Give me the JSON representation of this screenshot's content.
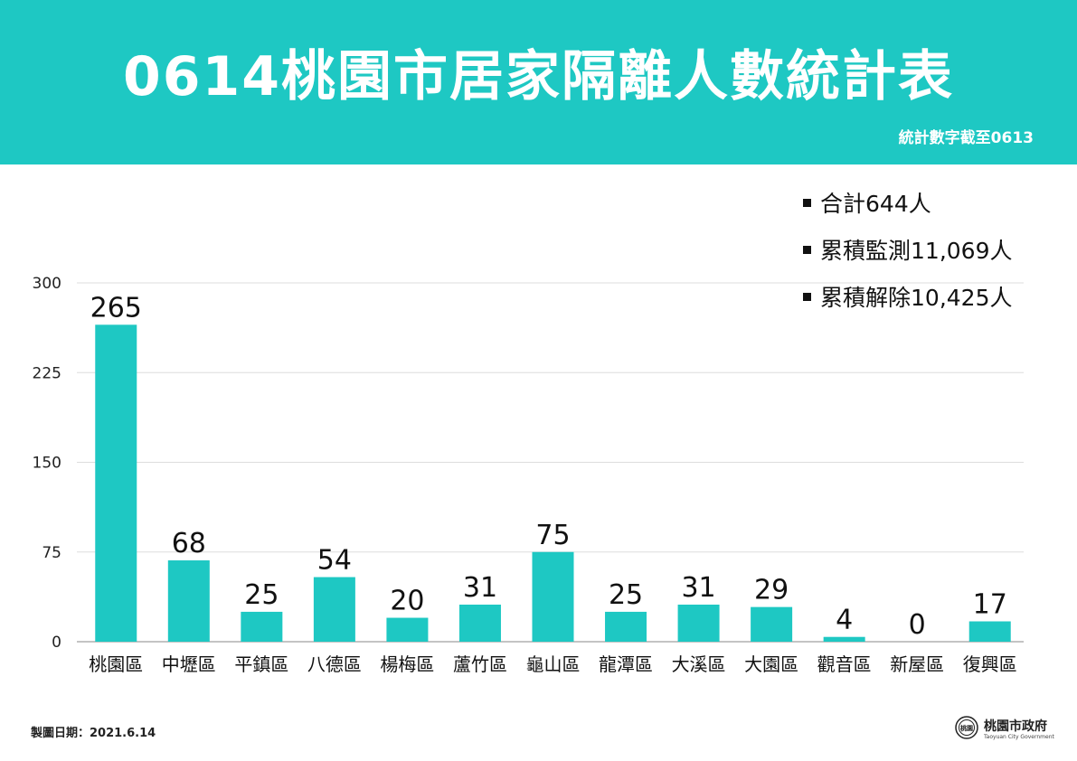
{
  "header": {
    "title": "0614桃園市居家隔離人數統計表",
    "subtitle": "統計數字截至0613"
  },
  "summary": [
    {
      "label": "合計",
      "value": "644",
      "unit": "人"
    },
    {
      "label": "累積監測",
      "value": "11,069",
      "unit": "人"
    },
    {
      "label": "累積解除",
      "value": "10,425",
      "unit": "人"
    }
  ],
  "chart_data": {
    "type": "bar",
    "title": "",
    "xlabel": "",
    "ylabel": "",
    "categories": [
      "桃園區",
      "中壢區",
      "平鎮區",
      "八德區",
      "楊梅區",
      "蘆竹區",
      "龜山區",
      "龍潭區",
      "大溪區",
      "大園區",
      "觀音區",
      "新屋區",
      "復興區"
    ],
    "values": [
      265,
      68,
      25,
      54,
      20,
      31,
      75,
      25,
      31,
      29,
      4,
      0,
      17
    ],
    "ylim": [
      0,
      300
    ],
    "yticks": [
      0,
      75,
      150,
      225,
      300
    ],
    "grid": true,
    "data_labels": true,
    "bar_color": "#1ec8c3"
  },
  "footer": {
    "date_label": "製圖日期：2021.6.14",
    "logo_name": "桃園市政府",
    "logo_en": "Taoyuan City Government",
    "logo_seal_text": "桃園"
  },
  "colors": {
    "accent": "#1ec8c3",
    "header_text": "#ffffff",
    "grid": "#dddddd"
  }
}
